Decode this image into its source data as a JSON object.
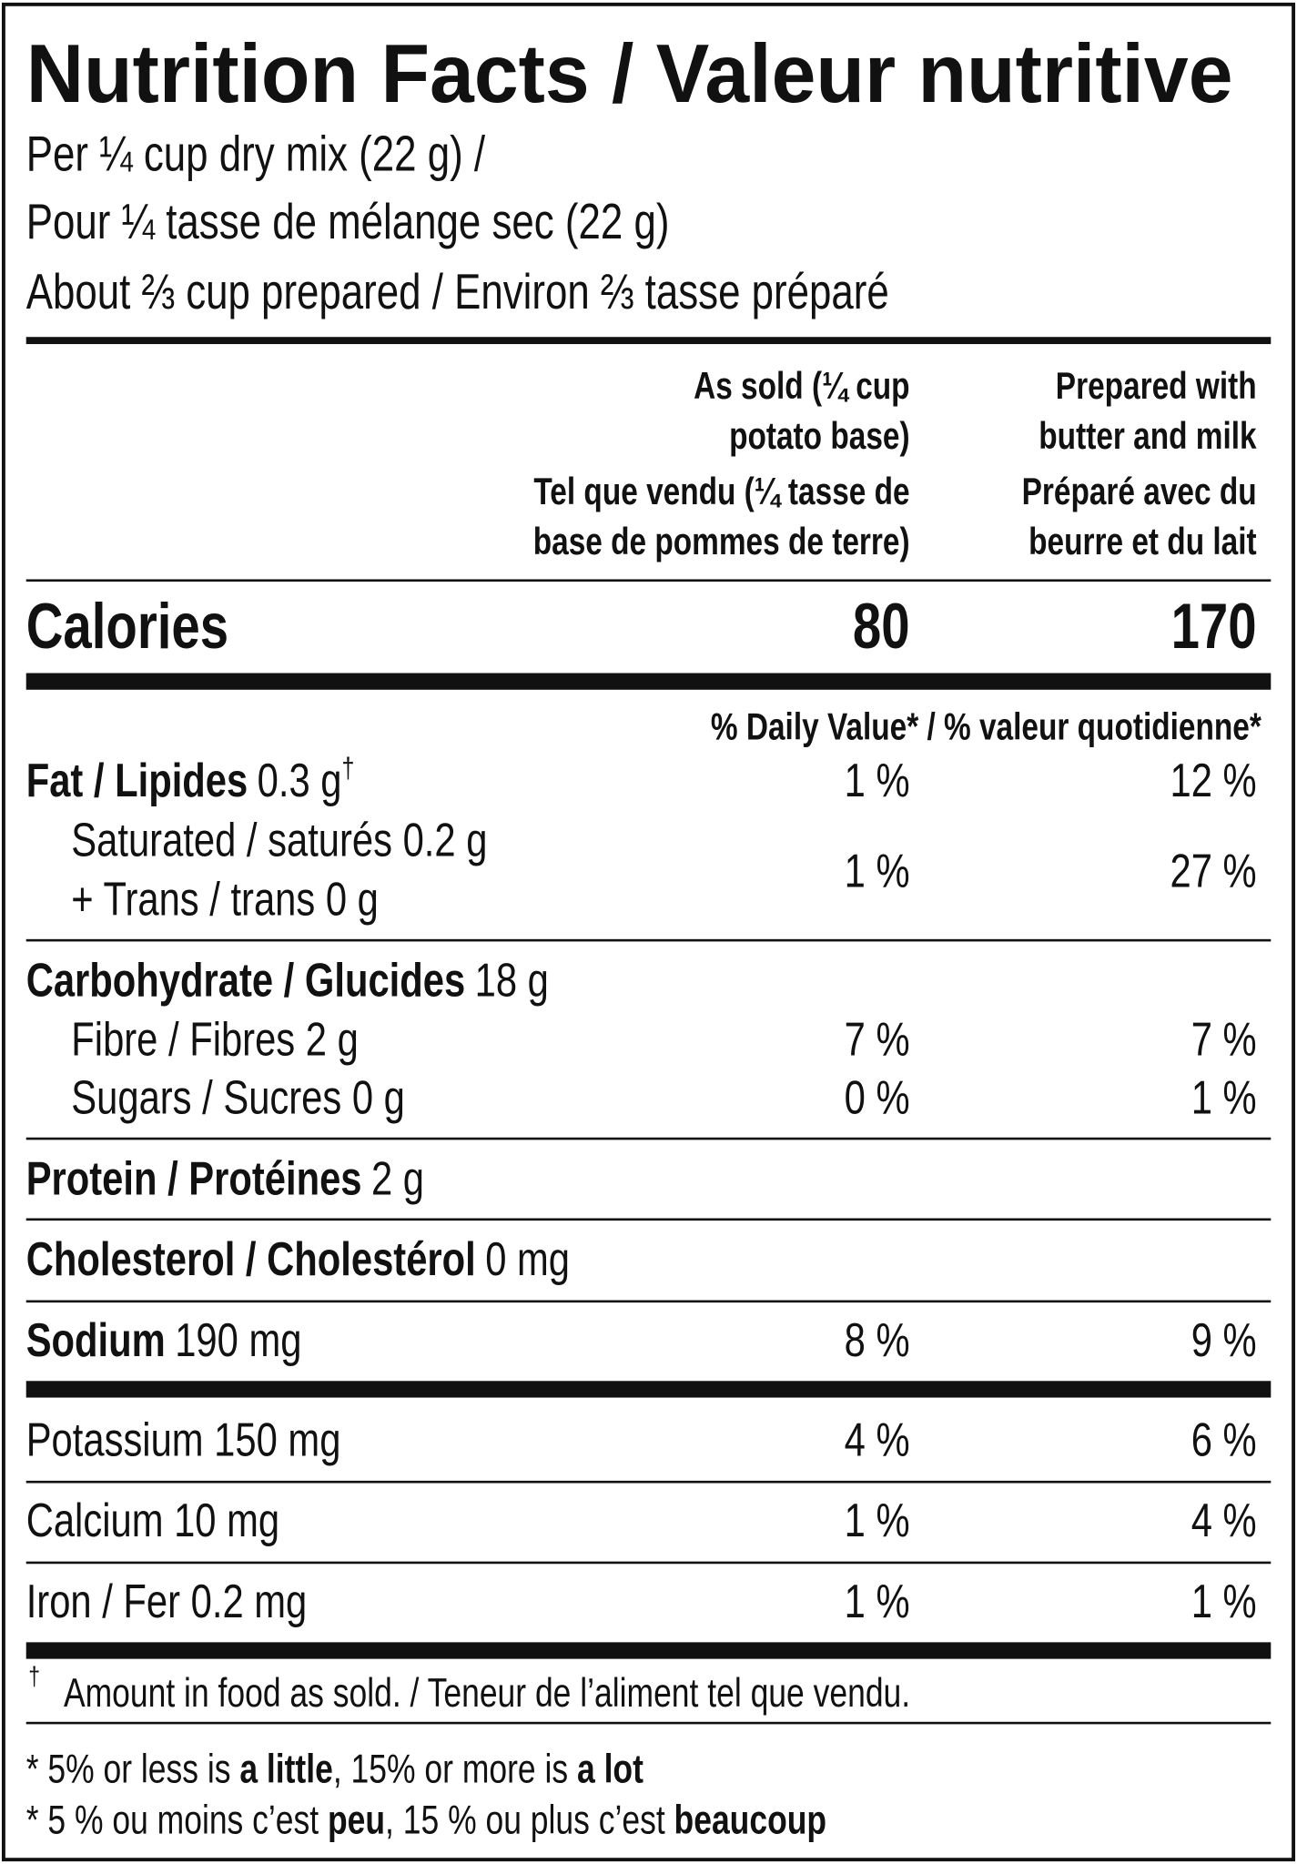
{
  "title": "Nutrition Facts / Valeur nutritive",
  "serving": [
    "Per ¼ cup dry mix (22 g) /",
    "Pour ¼ tasse de mélange sec (22 g)",
    "About ⅔ cup prepared / Environ ⅔ tasse préparé"
  ],
  "columns": [
    {
      "en": [
        "As sold (¼ cup",
        "potato base)"
      ],
      "fr": [
        "Tel que vendu (¼ tasse de",
        "base de pommes de terre)"
      ]
    },
    {
      "en": [
        "Prepared with",
        "butter and milk"
      ],
      "fr": [
        "Préparé avec du",
        "beurre et du lait"
      ]
    }
  ],
  "calories": {
    "label": "Calories",
    "values": [
      "80",
      "170"
    ]
  },
  "dv_header": "% Daily Value* / % valeur quotidienne*",
  "fat": {
    "name": "Fat / Lipides",
    "amount": "0.3 g",
    "mark": "†",
    "dv": [
      "1 %",
      "12 %"
    ]
  },
  "saturated": {
    "lines": [
      "Saturated / saturés 0.2 g",
      "+ Trans / trans 0 g"
    ],
    "dv": [
      "1 %",
      "27 %"
    ]
  },
  "carbohydrate": {
    "name": "Carbohydrate / Glucides",
    "amount": "18 g"
  },
  "fibre": {
    "name": "Fibre / Fibres 2 g",
    "dv": [
      "7 %",
      "7 %"
    ]
  },
  "sugars": {
    "name": "Sugars / Sucres 0 g",
    "dv": [
      "0 %",
      "1 %"
    ]
  },
  "protein": {
    "name": "Protein / Protéines",
    "amount": "2 g"
  },
  "cholesterol": {
    "name": "Cholesterol / Cholestérol",
    "amount": "0 mg"
  },
  "sodium": {
    "name": "Sodium",
    "amount": "190 mg",
    "dv": [
      "8 %",
      "9 %"
    ]
  },
  "potassium": {
    "name": "Potassium 150 mg",
    "dv": [
      "4 %",
      "6 %"
    ]
  },
  "calcium": {
    "name": "Calcium 10 mg",
    "dv": [
      "1 %",
      "4 %"
    ]
  },
  "iron": {
    "name": "Iron / Fer 0.2 mg",
    "dv": [
      "1 %",
      "1 %"
    ]
  },
  "footnote_mark": "†",
  "footnote": "Amount in food as sold. / Teneur de l’aliment tel que vendu.",
  "guide": [
    [
      "* 5% or less is ",
      "a little",
      ", 15% or more is ",
      "a lot"
    ],
    [
      "* 5 % ou moins c’est ",
      "peu",
      ", 15 % ou plus c’est ",
      "beaucoup"
    ]
  ]
}
